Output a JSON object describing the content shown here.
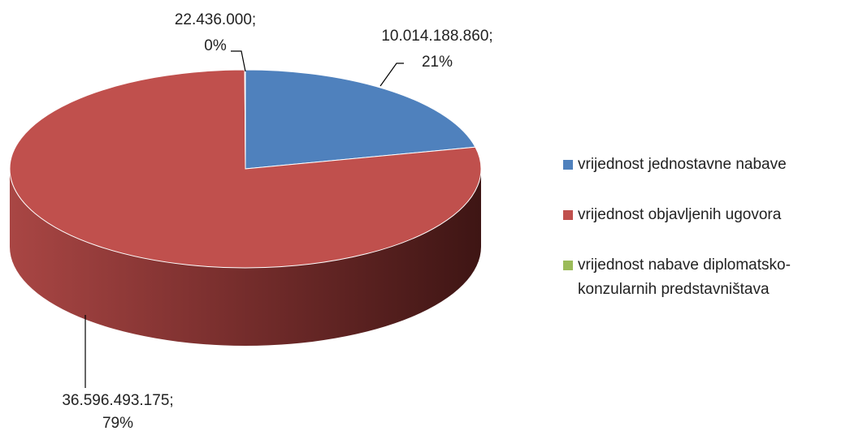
{
  "chart_data": {
    "type": "pie",
    "categories": [
      "vrijednost jednostavne nabave",
      "vrijednost objavljenih ugovora",
      "vrijednost nabave diplomatsko-konzularnih predstavništava"
    ],
    "values": [
      10014188860,
      36596493175,
      22436000
    ],
    "value_labels": [
      [
        "10.014.188.860;",
        "21%"
      ],
      [
        "36.596.493.175;",
        "79%"
      ],
      [
        "22.436.000;",
        "0%"
      ]
    ],
    "colors": [
      "#4f81bd",
      "#c0504d",
      "#9bbb59"
    ],
    "legend": "right"
  }
}
